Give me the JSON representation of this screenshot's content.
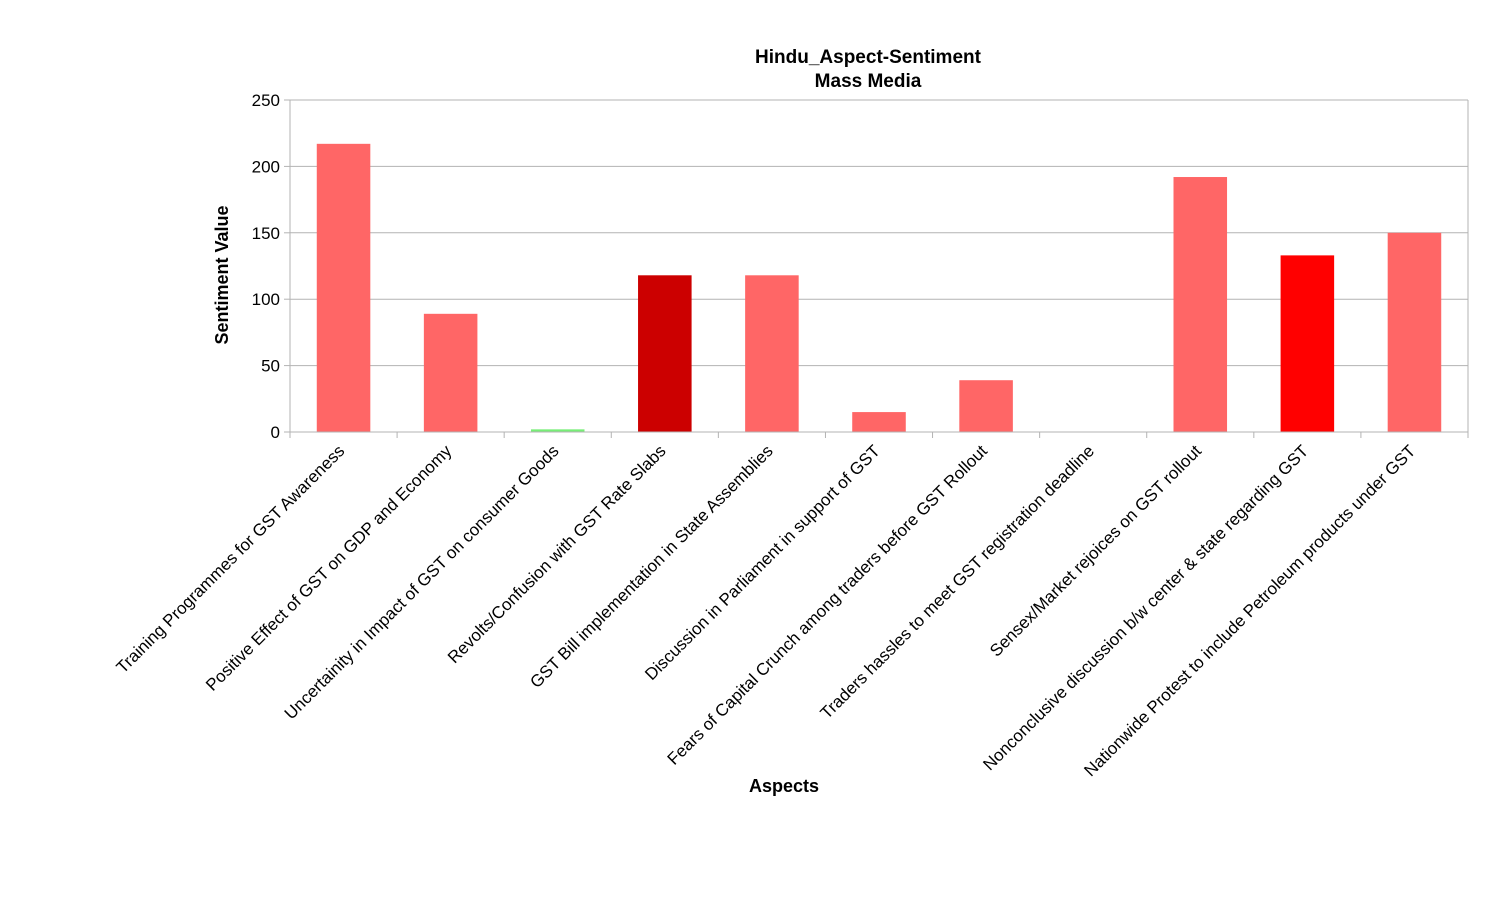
{
  "chart_data": {
    "type": "bar",
    "title": "Hindu_Aspect-Sentiment",
    "subtitle": "Mass Media",
    "xlabel": "Aspects",
    "ylabel": "Sentiment Value",
    "ylim": [
      0,
      250
    ],
    "yticks": [
      0,
      50,
      100,
      150,
      200,
      250
    ],
    "grid": true,
    "legend": "none",
    "categories": [
      "Training Programmes for  GST Awareness",
      "Positive Effect of GST on GDP and Economy",
      "Uncertainity in Impact of GST on consumer Goods",
      "Revolts/Confusion with GST Rate Slabs",
      "GST Bill implementation in State Assemblies",
      "Discussion in Parliament in support of GST",
      "Fears of Capital Crunch among traders before GST Rollout",
      "Traders hassles to meet GST registration deadline",
      "Sensex/Market rejoices on GST rollout",
      "Nonconclusive discussion b/w center & state regarding GST",
      "Nationwide Protest to include Petroleum products under GST"
    ],
    "values": [
      217,
      89,
      2,
      118,
      118,
      15,
      39,
      0,
      192,
      133,
      150
    ],
    "colors": [
      "#ff6666",
      "#ff6666",
      "#77ee77",
      "#cc0000",
      "#ff6666",
      "#ff6666",
      "#ff6666",
      "#ff6666",
      "#ff6666",
      "#ff0000",
      "#ff6666"
    ],
    "grid_color": "#b3b3b3",
    "axis_color": "#b3b3b3"
  }
}
